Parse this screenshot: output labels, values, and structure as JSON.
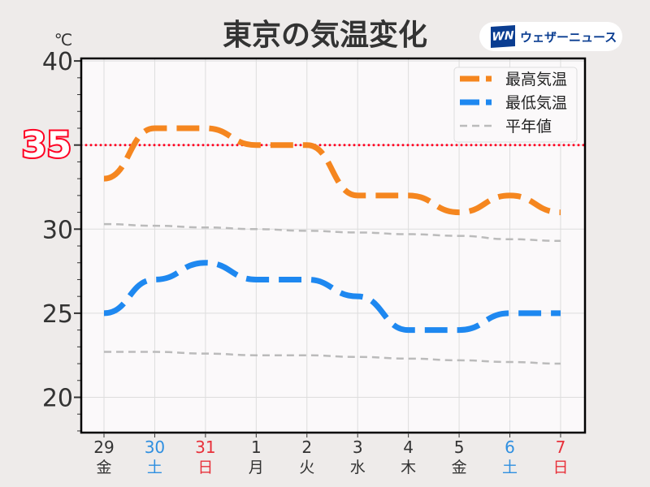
{
  "title": "東京の気温変化",
  "logo": {
    "mark": "WN",
    "text": "ウェザーニュース"
  },
  "chart_data": {
    "type": "line",
    "title": "東京の気温変化",
    "ylabel": "℃",
    "ylim": [
      17.9,
      40.15
    ],
    "yticks": [
      20,
      25,
      30,
      40
    ],
    "highlight": {
      "value": 35,
      "label": "35",
      "color": "#ff0022"
    },
    "categories": [
      "29",
      "30",
      "31",
      "1",
      "2",
      "3",
      "4",
      "5",
      "6",
      "7"
    ],
    "weekdays": [
      "金",
      "土",
      "日",
      "月",
      "火",
      "水",
      "木",
      "金",
      "土",
      "日"
    ],
    "label_colors": [
      "#333333",
      "#2f8fe0",
      "#e8303a",
      "#333333",
      "#333333",
      "#333333",
      "#333333",
      "#333333",
      "#2f8fe0",
      "#e8303a"
    ],
    "series": [
      {
        "name": "最高気温",
        "color": "#f5861f",
        "values": [
          33,
          36,
          36,
          35,
          35,
          32,
          32,
          31,
          32,
          31
        ]
      },
      {
        "name": "最低気温",
        "color": "#1e88f0",
        "values": [
          25,
          27,
          28,
          27,
          27,
          26,
          24,
          24,
          25,
          25
        ]
      },
      {
        "name": "平年値",
        "color": "#bbbbbb",
        "values": [
          30.3,
          30.2,
          30.1,
          30.0,
          29.9,
          29.8,
          29.7,
          29.6,
          29.4,
          29.3
        ]
      },
      {
        "name": "平年値",
        "color": "#bbbbbb",
        "values": [
          22.7,
          22.7,
          22.6,
          22.5,
          22.5,
          22.4,
          22.3,
          22.2,
          22.1,
          22.0
        ],
        "legend": false
      }
    ],
    "legend": "top-right",
    "grid": true
  }
}
